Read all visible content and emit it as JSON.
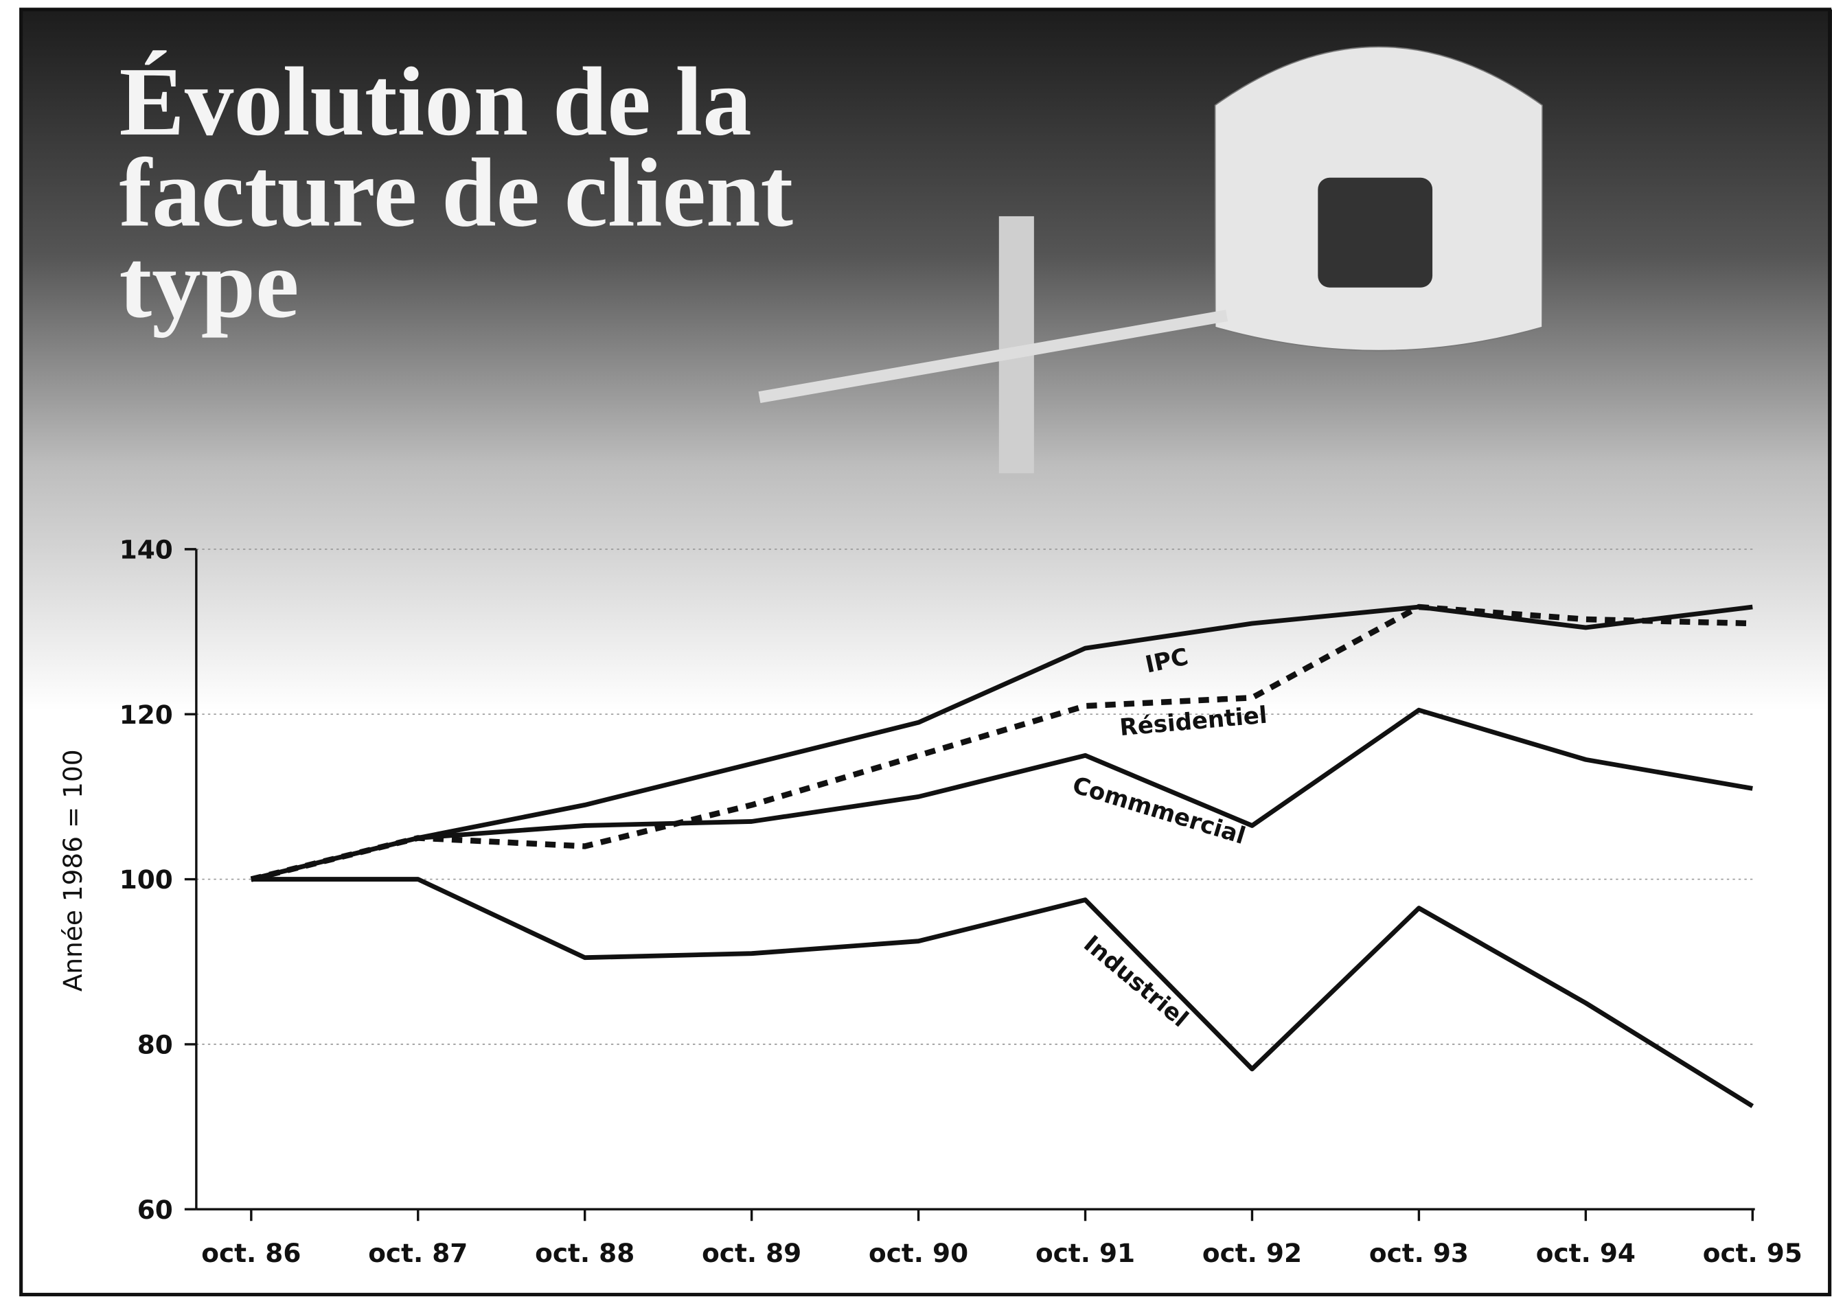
{
  "chart_data": {
    "type": "line",
    "title": "Évolution de la facture de client type",
    "y_label": "Année 1986 = 100",
    "categories": [
      "oct. 86",
      "oct. 87",
      "oct. 88",
      "oct. 89",
      "oct. 90",
      "oct. 91",
      "oct. 92",
      "oct. 93",
      "oct. 94",
      "oct. 95"
    ],
    "series": [
      {
        "name": "IPC",
        "color": "#111111",
        "style": "solid",
        "values": [
          100,
          105,
          109,
          114,
          119,
          128,
          131,
          133,
          130.5,
          133
        ]
      },
      {
        "name": "Résidentiel",
        "color": "#111111",
        "style": "dashed",
        "values": [
          100,
          105,
          104,
          109,
          115,
          121,
          122,
          133,
          131.5,
          131
        ]
      },
      {
        "name": "Commmercial",
        "color": "#111111",
        "style": "solid",
        "values": [
          100,
          105,
          106.5,
          107,
          110,
          115,
          106.5,
          120.5,
          114.5,
          111
        ]
      },
      {
        "name": "Industriel",
        "color": "#111111",
        "style": "solid",
        "values": [
          100,
          100,
          90.5,
          91,
          92.5,
          97.5,
          77,
          96.5,
          85,
          72.5
        ]
      }
    ],
    "ylim": [
      60,
      140
    ],
    "yticks": [
      60,
      80,
      100,
      120,
      140
    ],
    "grid": true
  }
}
